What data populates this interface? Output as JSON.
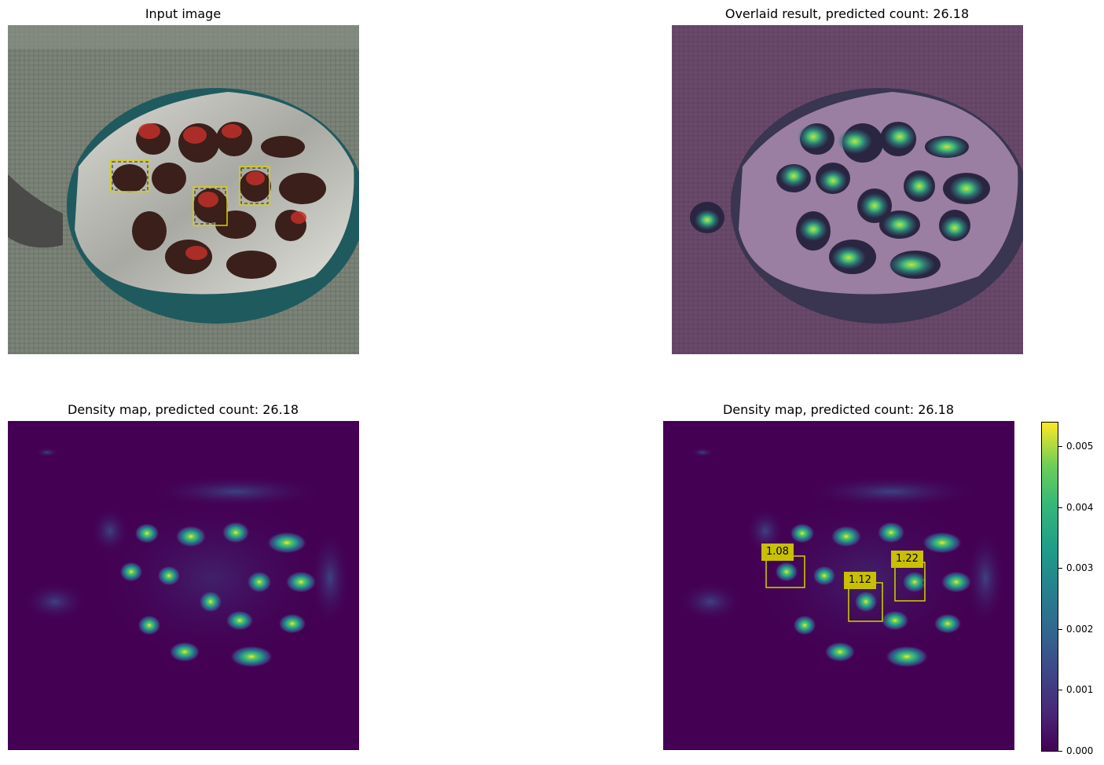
{
  "panels": {
    "input": {
      "title": "Input image"
    },
    "overlay": {
      "title": "Overlaid result, predicted count: 26.18"
    },
    "density_left": {
      "title": "Density map, predicted count: 26.18"
    },
    "density_right": {
      "title": "Density map, predicted count: 26.18"
    }
  },
  "box_labels": [
    "1.08",
    "1.12",
    "1.22"
  ],
  "colorbar": {
    "ticks": [
      "0.005",
      "0.004",
      "0.003",
      "0.002",
      "0.001",
      "0.000"
    ],
    "colormap": [
      "#440154",
      "#3b528b",
      "#21918c",
      "#5ec962",
      "#fde725"
    ]
  }
}
